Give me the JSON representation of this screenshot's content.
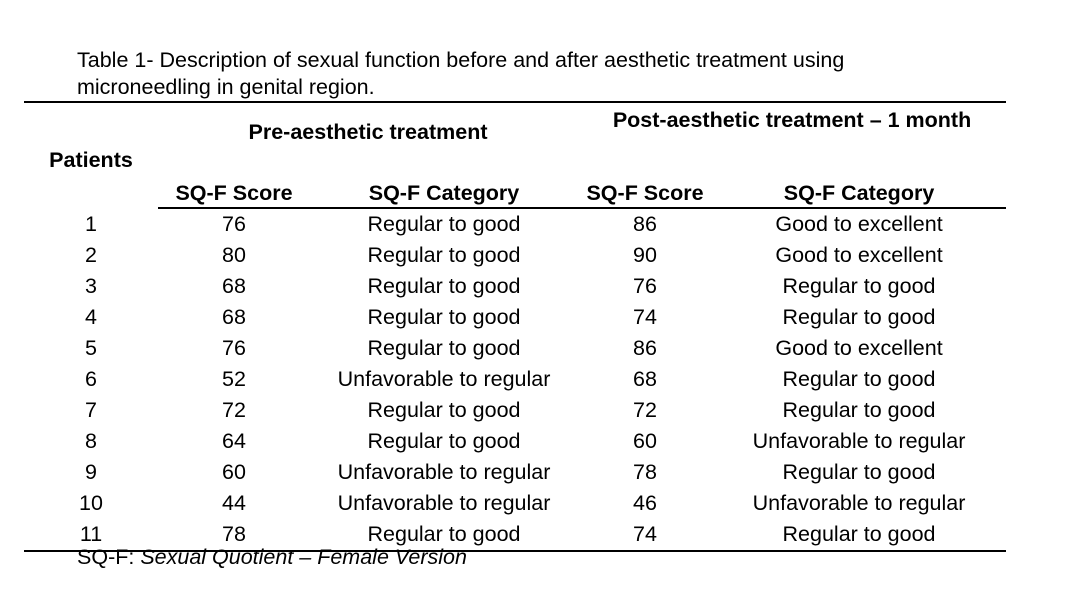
{
  "caption": {
    "line1": "Table 1- Description of sexual function before and after aesthetic treatment using",
    "line2": "microneedling in genital region."
  },
  "table": {
    "patients_header": "Patients",
    "pre_group_header": "Pre-aesthetic treatment",
    "post_group_header": "Post-aesthetic treatment – 1 month",
    "pre_score_header": "SQ-F Score",
    "pre_category_header": "SQ-F Category",
    "post_score_header": "SQ-F Score",
    "post_category_header": "SQ-F Category",
    "rows": [
      {
        "patient": "1",
        "pre_score": "76",
        "pre_category": "Regular to good",
        "post_score": "86",
        "post_category": "Good to excellent"
      },
      {
        "patient": "2",
        "pre_score": "80",
        "pre_category": "Regular to good",
        "post_score": "90",
        "post_category": "Good to excellent"
      },
      {
        "patient": "3",
        "pre_score": "68",
        "pre_category": "Regular to good",
        "post_score": "76",
        "post_category": "Regular to good"
      },
      {
        "patient": "4",
        "pre_score": "68",
        "pre_category": "Regular to good",
        "post_score": "74",
        "post_category": "Regular to good"
      },
      {
        "patient": "5",
        "pre_score": "76",
        "pre_category": "Regular to good",
        "post_score": "86",
        "post_category": "Good to excellent"
      },
      {
        "patient": "6",
        "pre_score": "52",
        "pre_category": "Unfavorable to regular",
        "post_score": "68",
        "post_category": "Regular to good"
      },
      {
        "patient": "7",
        "pre_score": "72",
        "pre_category": "Regular to good",
        "post_score": "72",
        "post_category": "Regular to good"
      },
      {
        "patient": "8",
        "pre_score": "64",
        "pre_category": "Regular to good",
        "post_score": "60",
        "post_category": "Unfavorable to regular"
      },
      {
        "patient": "9",
        "pre_score": "60",
        "pre_category": "Unfavorable to regular",
        "post_score": "78",
        "post_category": "Regular to good"
      },
      {
        "patient": "10",
        "pre_score": "44",
        "pre_category": "Unfavorable to regular",
        "post_score": "46",
        "post_category": "Unfavorable to regular"
      },
      {
        "patient": "11",
        "pre_score": "78",
        "pre_category": "Regular to good",
        "post_score": "74",
        "post_category": "Regular to good"
      }
    ]
  },
  "footnote": {
    "abbr": "SQ-F: ",
    "expansion": "Sexual Quotient – Female Version"
  }
}
